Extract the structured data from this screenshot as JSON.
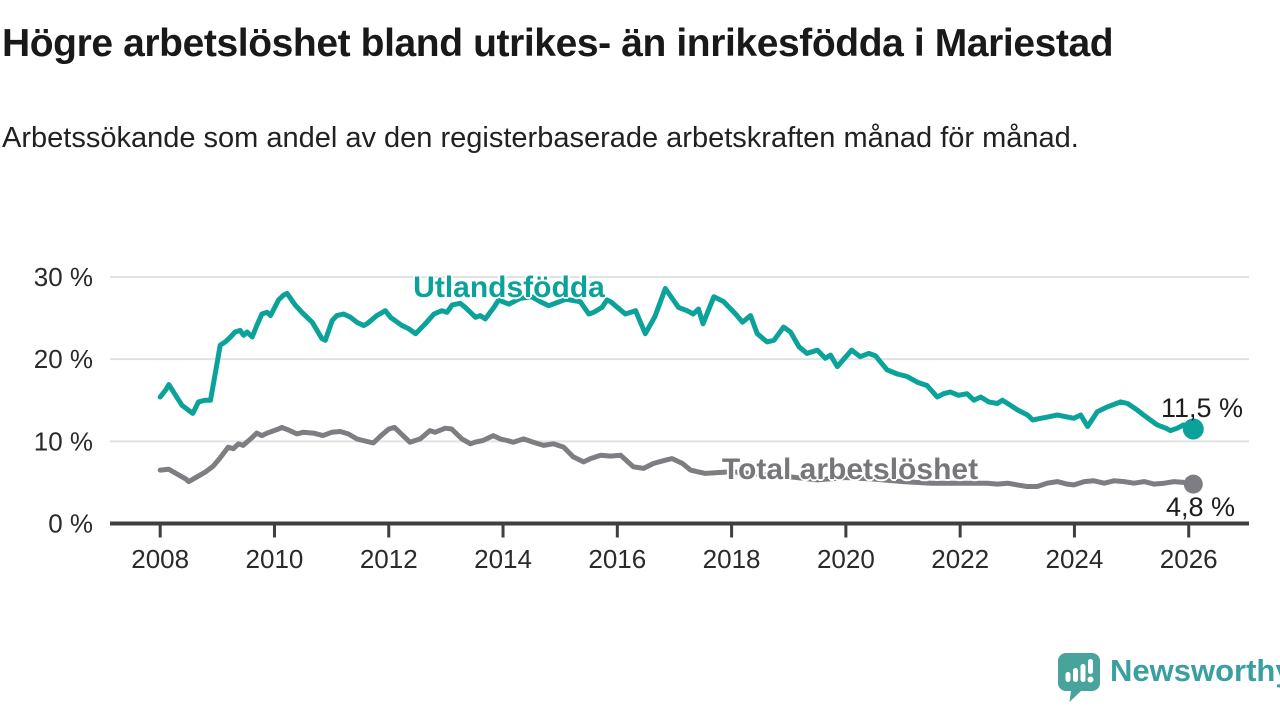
{
  "header": {
    "title": "Högre arbetslöshet bland utrikes- än inrikesfödda i Mariestad",
    "subtitle": "Arbetssökande som andel av den registerbaserade arbetskraften månad för månad."
  },
  "branding": {
    "name": "Newsworthy",
    "brand_color": "#3a9fa0",
    "logo_color": "#47a39c"
  },
  "chart_data": {
    "type": "line",
    "title": "Högre arbetslöshet bland utrikes- än inrikesfödda i Mariestad",
    "subtitle": "Arbetssökande som andel av den registerbaserade arbetskraften månad för månad.",
    "xlabel": "",
    "ylabel": "",
    "grid": "horizontal",
    "legend_position": "inline-labels",
    "x_axis": {
      "ticks": [
        2008,
        2010,
        2012,
        2014,
        2016,
        2018,
        2020,
        2022,
        2024,
        2026
      ],
      "range": [
        2007.1,
        2027.1
      ]
    },
    "y_axis": {
      "ticks": [
        0,
        10,
        20,
        30
      ],
      "tick_format": "{v} %",
      "range": [
        0,
        30
      ]
    },
    "series": [
      {
        "name": "Utlandsfödda",
        "color": "#0ba29a",
        "end_label": "11,5 %",
        "end_value": 11.5,
        "points": [
          [
            2008.0,
            15.4
          ],
          [
            2008.1,
            16.3
          ],
          [
            2008.15,
            16.9
          ],
          [
            2008.38,
            14.4
          ],
          [
            2008.53,
            13.6
          ],
          [
            2008.57,
            13.4
          ],
          [
            2008.67,
            14.8
          ],
          [
            2008.79,
            15.0
          ],
          [
            2008.88,
            15.0
          ],
          [
            2008.97,
            18.5
          ],
          [
            2009.05,
            21.7
          ],
          [
            2009.14,
            22.1
          ],
          [
            2009.23,
            22.7
          ],
          [
            2009.31,
            23.3
          ],
          [
            2009.4,
            23.5
          ],
          [
            2009.46,
            22.9
          ],
          [
            2009.52,
            23.3
          ],
          [
            2009.61,
            22.7
          ],
          [
            2009.69,
            24.1
          ],
          [
            2009.78,
            25.5
          ],
          [
            2009.87,
            25.7
          ],
          [
            2009.93,
            25.3
          ],
          [
            2010.07,
            27.2
          ],
          [
            2010.16,
            27.8
          ],
          [
            2010.22,
            28.0
          ],
          [
            2010.36,
            26.6
          ],
          [
            2010.48,
            25.7
          ],
          [
            2010.57,
            25.1
          ],
          [
            2010.66,
            24.5
          ],
          [
            2010.83,
            22.5
          ],
          [
            2010.89,
            22.3
          ],
          [
            2011.01,
            24.7
          ],
          [
            2011.09,
            25.3
          ],
          [
            2011.21,
            25.5
          ],
          [
            2011.33,
            25.1
          ],
          [
            2011.44,
            24.5
          ],
          [
            2011.56,
            24.1
          ],
          [
            2011.62,
            24.3
          ],
          [
            2011.79,
            25.3
          ],
          [
            2011.94,
            25.9
          ],
          [
            2012.03,
            25.1
          ],
          [
            2012.23,
            24.1
          ],
          [
            2012.35,
            23.7
          ],
          [
            2012.47,
            23.1
          ],
          [
            2012.64,
            24.3
          ],
          [
            2012.79,
            25.5
          ],
          [
            2012.93,
            25.9
          ],
          [
            2013.02,
            25.7
          ],
          [
            2013.11,
            26.6
          ],
          [
            2013.25,
            26.8
          ],
          [
            2013.34,
            26.3
          ],
          [
            2013.52,
            25.1
          ],
          [
            2013.6,
            25.3
          ],
          [
            2013.69,
            24.9
          ],
          [
            2013.84,
            26.3
          ],
          [
            2013.92,
            27.2
          ],
          [
            2014.1,
            26.7
          ],
          [
            2014.3,
            27.4
          ],
          [
            2014.5,
            27.6
          ],
          [
            2014.65,
            27.0
          ],
          [
            2014.8,
            26.5
          ],
          [
            2014.95,
            26.9
          ],
          [
            2015.1,
            27.3
          ],
          [
            2015.25,
            27.1
          ],
          [
            2015.35,
            27.0
          ],
          [
            2015.5,
            25.5
          ],
          [
            2015.59,
            25.7
          ],
          [
            2015.73,
            26.3
          ],
          [
            2015.82,
            27.2
          ],
          [
            2015.88,
            27.0
          ],
          [
            2016.14,
            25.5
          ],
          [
            2016.32,
            25.9
          ],
          [
            2016.49,
            23.1
          ],
          [
            2016.66,
            25.2
          ],
          [
            2016.84,
            28.6
          ],
          [
            2017.07,
            26.3
          ],
          [
            2017.22,
            25.9
          ],
          [
            2017.33,
            25.5
          ],
          [
            2017.42,
            26.1
          ],
          [
            2017.5,
            24.3
          ],
          [
            2017.69,
            27.6
          ],
          [
            2017.86,
            27.0
          ],
          [
            2018.07,
            25.5
          ],
          [
            2018.19,
            24.5
          ],
          [
            2018.33,
            25.3
          ],
          [
            2018.45,
            23.1
          ],
          [
            2018.62,
            22.1
          ],
          [
            2018.74,
            22.3
          ],
          [
            2018.91,
            23.9
          ],
          [
            2019.03,
            23.3
          ],
          [
            2019.18,
            21.5
          ],
          [
            2019.32,
            20.7
          ],
          [
            2019.5,
            21.1
          ],
          [
            2019.64,
            20.1
          ],
          [
            2019.73,
            20.5
          ],
          [
            2019.85,
            19.1
          ],
          [
            2020.0,
            20.3
          ],
          [
            2020.1,
            21.1
          ],
          [
            2020.25,
            20.3
          ],
          [
            2020.4,
            20.7
          ],
          [
            2020.52,
            20.4
          ],
          [
            2020.72,
            18.7
          ],
          [
            2020.9,
            18.2
          ],
          [
            2021.07,
            17.9
          ],
          [
            2021.25,
            17.2
          ],
          [
            2021.42,
            16.8
          ],
          [
            2021.6,
            15.4
          ],
          [
            2021.71,
            15.8
          ],
          [
            2021.83,
            16.0
          ],
          [
            2021.97,
            15.6
          ],
          [
            2022.12,
            15.8
          ],
          [
            2022.24,
            15.0
          ],
          [
            2022.36,
            15.4
          ],
          [
            2022.5,
            14.8
          ],
          [
            2022.65,
            14.6
          ],
          [
            2022.74,
            15.0
          ],
          [
            2022.88,
            14.4
          ],
          [
            2023.01,
            13.8
          ],
          [
            2023.18,
            13.2
          ],
          [
            2023.27,
            12.6
          ],
          [
            2023.41,
            12.8
          ],
          [
            2023.56,
            13.0
          ],
          [
            2023.7,
            13.2
          ],
          [
            2023.85,
            13.0
          ],
          [
            2023.99,
            12.8
          ],
          [
            2024.11,
            13.2
          ],
          [
            2024.23,
            11.8
          ],
          [
            2024.4,
            13.6
          ],
          [
            2024.58,
            14.2
          ],
          [
            2024.81,
            14.8
          ],
          [
            2024.93,
            14.6
          ],
          [
            2025.1,
            13.8
          ],
          [
            2025.21,
            13.2
          ],
          [
            2025.33,
            12.6
          ],
          [
            2025.45,
            12.0
          ],
          [
            2025.6,
            11.6
          ],
          [
            2025.68,
            11.3
          ],
          [
            2025.8,
            11.6
          ],
          [
            2025.91,
            12.0
          ],
          [
            2026.08,
            11.5
          ]
        ]
      },
      {
        "name": "Total arbetslöshet",
        "color": "#7e7e82",
        "end_label": "4,8 %",
        "end_value": 4.8,
        "points": [
          [
            2008.0,
            6.5
          ],
          [
            2008.15,
            6.6
          ],
          [
            2008.35,
            5.8
          ],
          [
            2008.45,
            5.4
          ],
          [
            2008.5,
            5.1
          ],
          [
            2008.65,
            5.7
          ],
          [
            2008.8,
            6.3
          ],
          [
            2008.93,
            7.0
          ],
          [
            2009.05,
            8.0
          ],
          [
            2009.19,
            9.3
          ],
          [
            2009.28,
            9.1
          ],
          [
            2009.37,
            9.7
          ],
          [
            2009.45,
            9.5
          ],
          [
            2009.6,
            10.4
          ],
          [
            2009.69,
            11.0
          ],
          [
            2009.78,
            10.7
          ],
          [
            2009.87,
            11.0
          ],
          [
            2010.07,
            11.5
          ],
          [
            2010.13,
            11.7
          ],
          [
            2010.27,
            11.3
          ],
          [
            2010.39,
            10.9
          ],
          [
            2010.5,
            11.1
          ],
          [
            2010.68,
            11.0
          ],
          [
            2010.85,
            10.7
          ],
          [
            2011.0,
            11.1
          ],
          [
            2011.15,
            11.2
          ],
          [
            2011.29,
            10.9
          ],
          [
            2011.44,
            10.3
          ],
          [
            2011.55,
            10.1
          ],
          [
            2011.73,
            9.8
          ],
          [
            2011.85,
            10.6
          ],
          [
            2012.0,
            11.5
          ],
          [
            2012.1,
            11.7
          ],
          [
            2012.37,
            9.9
          ],
          [
            2012.55,
            10.3
          ],
          [
            2012.72,
            11.3
          ],
          [
            2012.81,
            11.1
          ],
          [
            2012.99,
            11.6
          ],
          [
            2013.1,
            11.5
          ],
          [
            2013.28,
            10.3
          ],
          [
            2013.43,
            9.7
          ],
          [
            2013.51,
            9.9
          ],
          [
            2013.65,
            10.1
          ],
          [
            2013.83,
            10.7
          ],
          [
            2013.95,
            10.3
          ],
          [
            2014.07,
            10.1
          ],
          [
            2014.18,
            9.9
          ],
          [
            2014.36,
            10.3
          ],
          [
            2014.53,
            9.9
          ],
          [
            2014.71,
            9.5
          ],
          [
            2014.88,
            9.7
          ],
          [
            2015.06,
            9.3
          ],
          [
            2015.23,
            8.1
          ],
          [
            2015.41,
            7.5
          ],
          [
            2015.53,
            7.9
          ],
          [
            2015.71,
            8.3
          ],
          [
            2015.88,
            8.2
          ],
          [
            2016.06,
            8.3
          ],
          [
            2016.28,
            6.9
          ],
          [
            2016.46,
            6.7
          ],
          [
            2016.63,
            7.3
          ],
          [
            2016.84,
            7.7
          ],
          [
            2016.96,
            7.9
          ],
          [
            2017.14,
            7.3
          ],
          [
            2017.28,
            6.5
          ],
          [
            2017.4,
            6.3
          ],
          [
            2017.54,
            6.1
          ],
          [
            2018.0,
            6.3
          ],
          [
            2018.5,
            6.0
          ],
          [
            2019.0,
            5.7
          ],
          [
            2019.5,
            5.3
          ],
          [
            2020.0,
            5.6
          ],
          [
            2020.5,
            5.4
          ],
          [
            2021.0,
            5.1
          ],
          [
            2021.5,
            4.9
          ],
          [
            2022.0,
            4.9
          ],
          [
            2022.48,
            4.9
          ],
          [
            2022.65,
            4.8
          ],
          [
            2022.83,
            4.9
          ],
          [
            2023.0,
            4.7
          ],
          [
            2023.17,
            4.5
          ],
          [
            2023.35,
            4.5
          ],
          [
            2023.52,
            4.9
          ],
          [
            2023.7,
            5.1
          ],
          [
            2023.87,
            4.8
          ],
          [
            2023.99,
            4.7
          ],
          [
            2024.17,
            5.1
          ],
          [
            2024.34,
            5.2
          ],
          [
            2024.52,
            4.9
          ],
          [
            2024.69,
            5.2
          ],
          [
            2024.87,
            5.1
          ],
          [
            2025.04,
            4.9
          ],
          [
            2025.22,
            5.1
          ],
          [
            2025.39,
            4.8
          ],
          [
            2025.57,
            4.9
          ],
          [
            2025.74,
            5.1
          ],
          [
            2025.91,
            5.0
          ],
          [
            2026.08,
            4.8
          ]
        ]
      }
    ]
  }
}
